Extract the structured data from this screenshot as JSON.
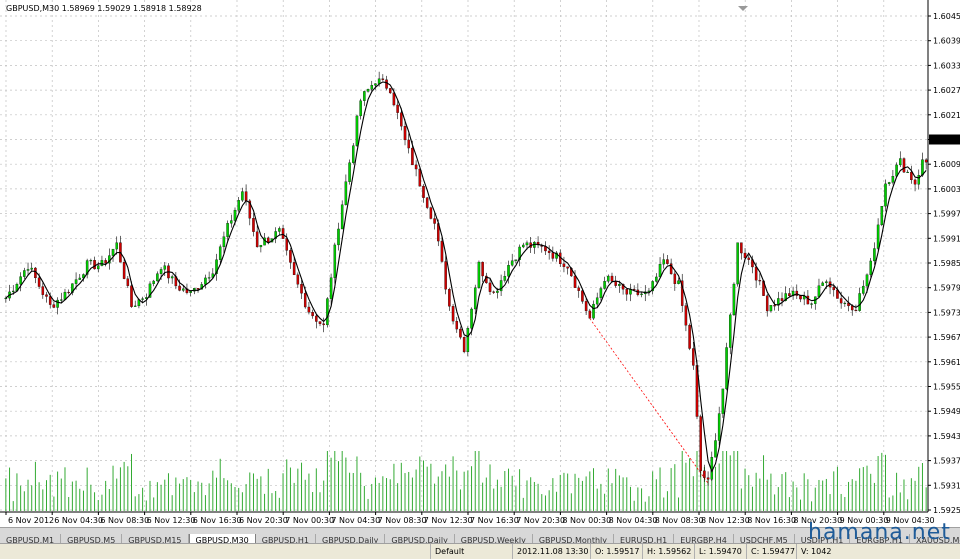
{
  "window": {
    "title": "GBPUSD,M30  1.58969 1.59029 1.58918 1.58928"
  },
  "tabs": [
    {
      "label": "GBPUSD,M1",
      "active": false
    },
    {
      "label": "GBPUSD,M5",
      "active": false
    },
    {
      "label": "GBPUSD,M15",
      "active": false
    },
    {
      "label": "GBPUSD,M30",
      "active": true
    },
    {
      "label": "GBPUSD,H1",
      "active": false
    },
    {
      "label": "GBPUSD,Daily",
      "active": false
    },
    {
      "label": "GBPUSD,Daily",
      "active": false
    },
    {
      "label": "GBPUSD,Weekly",
      "active": false
    },
    {
      "label": "GBPUSD,Monthly",
      "active": false
    },
    {
      "label": "EURUSD,H1",
      "active": false
    },
    {
      "label": "EURGBP,H4",
      "active": false
    },
    {
      "label": "USDCHF,M5",
      "active": false
    },
    {
      "label": "USDJPY,H1",
      "active": false
    },
    {
      "label": "EURGBP,H1",
      "active": false
    },
    {
      "label": "XAUUSD,Monthly",
      "active": false
    }
  ],
  "status": {
    "profile": "Default",
    "datetime": "2012.11.08 13:30",
    "open": "O: 1.59517",
    "high": "H: 1.59562",
    "low": "L: 1.59470",
    "close": "C: 1.59477",
    "volume": "V: 1042"
  },
  "watermark": "hamana.net",
  "colors": {
    "bull": "#00cc00",
    "bear": "#cc0000",
    "grid": "#c0c0c0",
    "volume": "#33aa33",
    "line": "#000000"
  },
  "chart_data": {
    "type": "candlestick",
    "title": "GBPUSD,M30  1.58969 1.59029 1.58918 1.58928",
    "price_ticks": [
      "1.60455",
      "1.60395",
      "1.60335",
      "1.60275",
      "1.60215",
      "1.60155",
      "1.60095",
      "1.60035",
      "1.59975",
      "1.59915",
      "1.59855",
      "1.59795",
      "1.59735",
      "1.59675",
      "1.59615",
      "1.59555",
      "1.59495",
      "1.59435",
      "1.59375",
      "1.59315",
      "1.59255"
    ],
    "ylim": [
      1.59255,
      1.60455
    ],
    "time_ticks": [
      "6 Nov 2012",
      "6 Nov 04:30",
      "6 Nov 08:30",
      "6 Nov 12:30",
      "6 Nov 16:30",
      "6 Nov 20:30",
      "7 Nov 00:30",
      "7 Nov 04:30",
      "7 Nov 08:30",
      "7 Nov 12:30",
      "7 Nov 16:30",
      "7 Nov 20:30",
      "8 Nov 00:30",
      "8 Nov 04:30",
      "8 Nov 08:30",
      "8 Nov 12:30",
      "8 Nov 16:30",
      "8 Nov 20:30",
      "9 Nov 00:30",
      "9 Nov 04:30"
    ],
    "grid": true,
    "current_price_marker": 1.60155,
    "moving_average": true,
    "volume": true,
    "keypoints": [
      [
        0,
        1.5977
      ],
      [
        6,
        1.5985
      ],
      [
        12,
        1.5975
      ],
      [
        16,
        1.5978
      ],
      [
        22,
        1.5985
      ],
      [
        26,
        1.5985
      ],
      [
        30,
        1.599
      ],
      [
        34,
        1.5975
      ],
      [
        38,
        1.5978
      ],
      [
        42,
        1.5985
      ],
      [
        46,
        1.598
      ],
      [
        50,
        1.5978
      ],
      [
        56,
        1.5984
      ],
      [
        60,
        1.5994
      ],
      [
        64,
        1.6003
      ],
      [
        68,
        1.599
      ],
      [
        74,
        1.5993
      ],
      [
        78,
        1.5982
      ],
      [
        82,
        1.5974
      ],
      [
        86,
        1.597
      ],
      [
        90,
        1.5995
      ],
      [
        96,
        1.6025
      ],
      [
        100,
        1.603
      ],
      [
        104,
        1.6028
      ],
      [
        108,
        1.6015
      ],
      [
        112,
        1.6005
      ],
      [
        116,
        1.5995
      ],
      [
        120,
        1.5975
      ],
      [
        124,
        1.5965
      ],
      [
        128,
        1.5985
      ],
      [
        132,
        1.5978
      ],
      [
        136,
        1.5985
      ],
      [
        140,
        1.599
      ],
      [
        146,
        1.5989
      ],
      [
        152,
        1.5985
      ],
      [
        158,
        1.5972
      ],
      [
        162,
        1.5982
      ],
      [
        168,
        1.5978
      ],
      [
        174,
        1.5978
      ],
      [
        178,
        1.5986
      ],
      [
        182,
        1.598
      ],
      [
        186,
        1.596
      ],
      [
        188,
        1.5935
      ],
      [
        190,
        1.5932
      ],
      [
        194,
        1.5955
      ],
      [
        198,
        1.599
      ],
      [
        202,
        1.5985
      ],
      [
        206,
        1.5975
      ],
      [
        212,
        1.5978
      ],
      [
        218,
        1.5976
      ],
      [
        222,
        1.5982
      ],
      [
        226,
        1.5976
      ],
      [
        230,
        1.5975
      ],
      [
        234,
        1.5985
      ],
      [
        238,
        1.6005
      ],
      [
        242,
        1.601
      ],
      [
        246,
        1.6005
      ],
      [
        248,
        1.601
      ]
    ]
  }
}
